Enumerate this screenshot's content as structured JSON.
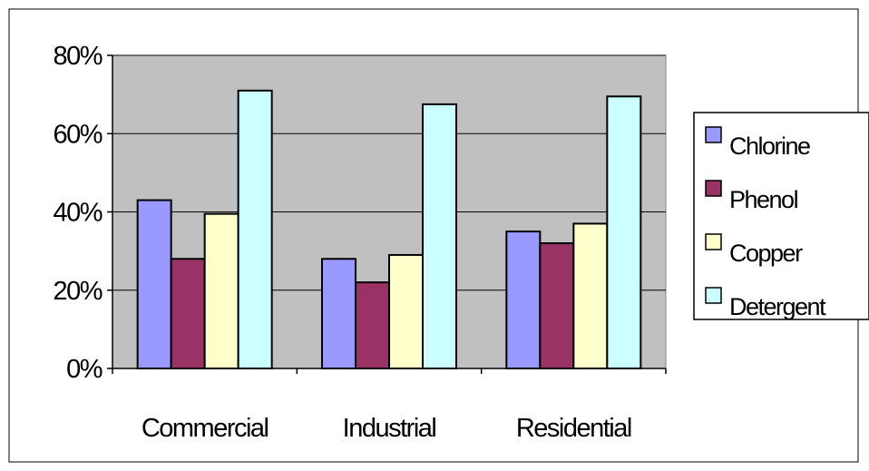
{
  "chart_data": {
    "type": "bar",
    "title": "",
    "xlabel": "",
    "ylabel": "",
    "categories": [
      "Commercial",
      "Industrial",
      "Residential"
    ],
    "series": [
      {
        "name": "Chlorine",
        "values": [
          43,
          28,
          35
        ],
        "color": "#9999ff"
      },
      {
        "name": "Phenol",
        "values": [
          28,
          22,
          32
        ],
        "color": "#993366"
      },
      {
        "name": "Copper",
        "values": [
          39.5,
          29,
          37
        ],
        "color": "#ffffcc"
      },
      {
        "name": "Detergent",
        "values": [
          71,
          67.5,
          69.5
        ],
        "color": "#ccffff"
      }
    ],
    "ylim": [
      0,
      80
    ],
    "yticks": [
      0,
      20,
      40,
      60,
      80
    ],
    "ytick_labels": [
      "0%",
      "20%",
      "40%",
      "60%",
      "80%"
    ],
    "grid": true,
    "plot_background": "#c0c0c0",
    "legend_position": "right"
  }
}
